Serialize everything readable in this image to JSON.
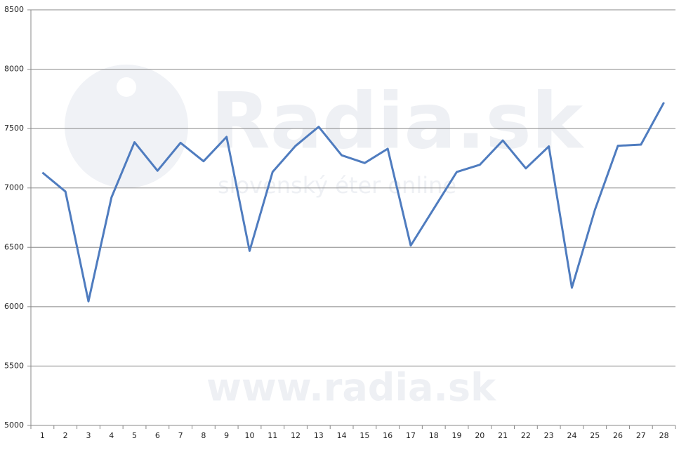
{
  "chart_data": {
    "type": "line",
    "categories": [
      "1",
      "2",
      "3",
      "4",
      "5",
      "6",
      "7",
      "8",
      "9",
      "10",
      "11",
      "12",
      "13",
      "14",
      "15",
      "16",
      "17",
      "18",
      "19",
      "20",
      "21",
      "22",
      "23",
      "24",
      "25",
      "26",
      "27",
      "28"
    ],
    "series": [
      {
        "color": "#4f7cbf",
        "values": [
          7130,
          6970,
          6045,
          6920,
          7385,
          7145,
          7380,
          7225,
          7430,
          6470,
          7135,
          7355,
          7515,
          7275,
          7210,
          7330,
          6515,
          6825,
          7135,
          7195,
          7400,
          7165,
          7350,
          6160,
          6815,
          7355,
          7365,
          7720
        ]
      }
    ],
    "ylim": [
      5000,
      8500
    ],
    "yticks": [
      5000,
      5500,
      6000,
      6500,
      7000,
      7500,
      8000,
      8500
    ],
    "grid": true,
    "watermark": [
      "Radia.sk",
      "slovenský éter online",
      "www.radia.sk"
    ]
  }
}
